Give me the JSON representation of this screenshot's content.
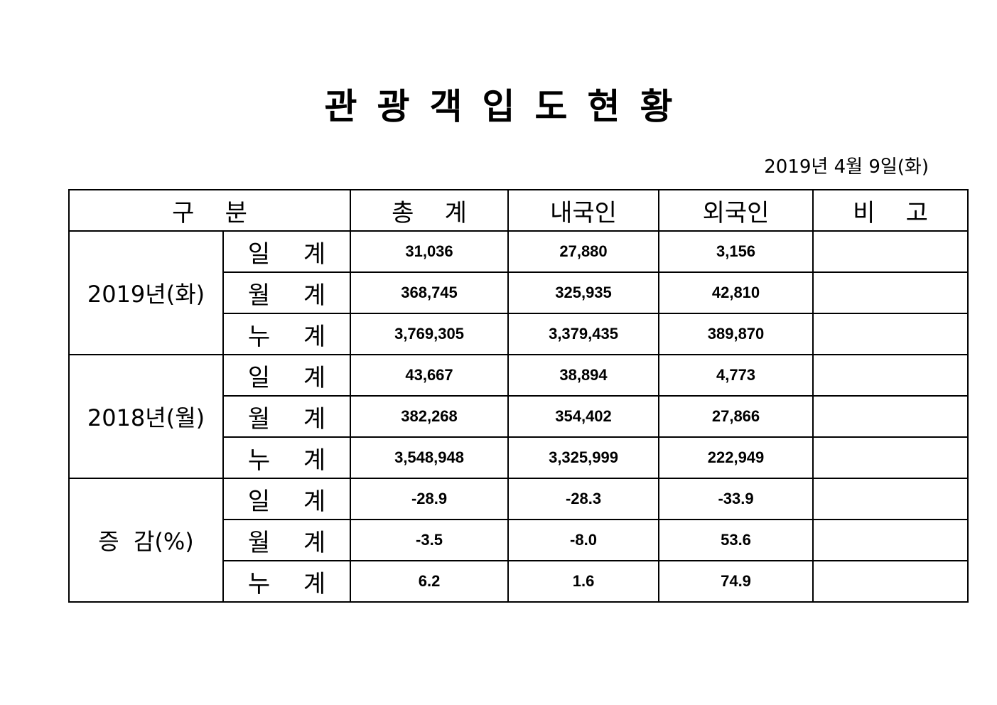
{
  "title": "관광객입도현황",
  "date": "2019년  4월  9일(화)",
  "headers": [
    "구    분",
    "총    계",
    "내국인",
    "외국인",
    "비    고"
  ],
  "groups": [
    {
      "label": "2019년(화)",
      "rows": [
        {
          "sub": "일 계",
          "total": "31,036",
          "domestic": "27,880",
          "foreign": "3,156",
          "note": ""
        },
        {
          "sub": "월 계",
          "total": "368,745",
          "domestic": "325,935",
          "foreign": "42,810",
          "note": ""
        },
        {
          "sub": "누 계",
          "total": "3,769,305",
          "domestic": "3,379,435",
          "foreign": "389,870",
          "note": ""
        }
      ]
    },
    {
      "label": "2018년(월)",
      "rows": [
        {
          "sub": "일 계",
          "total": "43,667",
          "domestic": "38,894",
          "foreign": "4,773",
          "note": ""
        },
        {
          "sub": "월 계",
          "total": "382,268",
          "domestic": "354,402",
          "foreign": "27,866",
          "note": ""
        },
        {
          "sub": "누 계",
          "total": "3,548,948",
          "domestic": "3,325,999",
          "foreign": "222,949",
          "note": ""
        }
      ]
    },
    {
      "label": "증  감(%)",
      "rows": [
        {
          "sub": "일 계",
          "total": "-28.9",
          "domestic": "-28.3",
          "foreign": "-33.9",
          "note": ""
        },
        {
          "sub": "월 계",
          "total": "-3.5",
          "domestic": "-8.0",
          "foreign": "53.6",
          "note": ""
        },
        {
          "sub": "누 계",
          "total": "6.2",
          "domestic": "1.6",
          "foreign": "74.9",
          "note": ""
        }
      ]
    }
  ]
}
